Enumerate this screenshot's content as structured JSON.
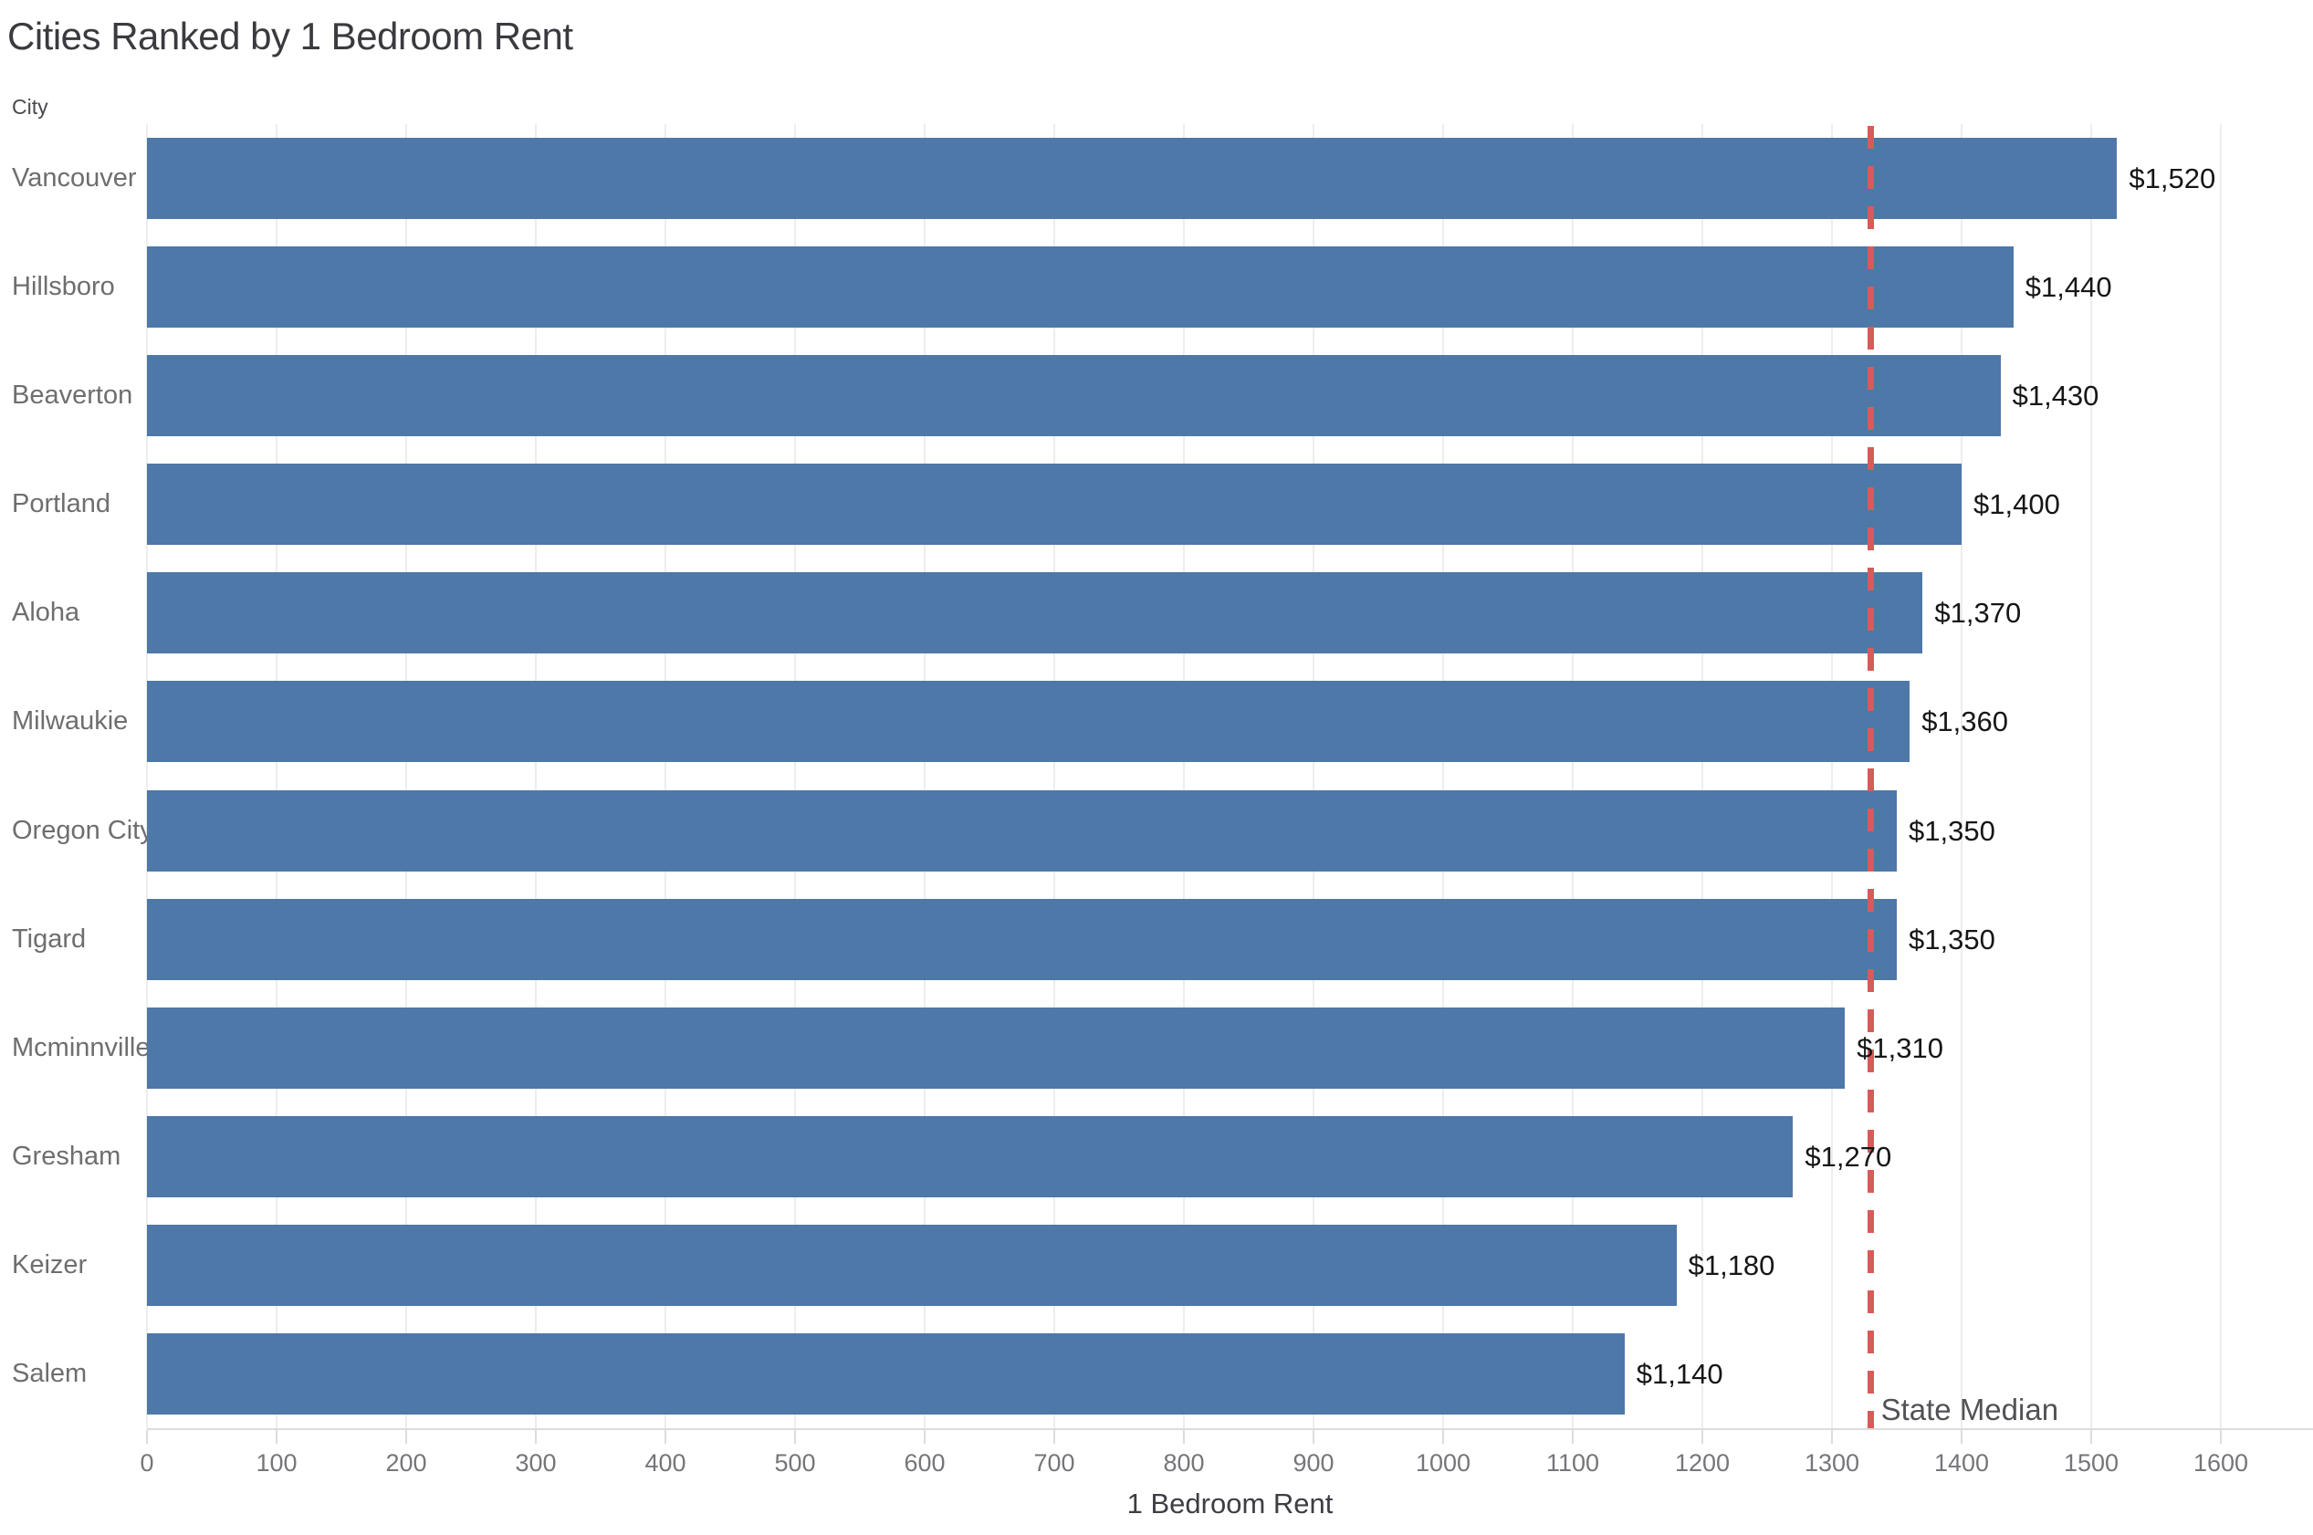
{
  "title": "Cities Ranked by 1 Bedroom Rent",
  "row_header": "City",
  "colors": {
    "bar": "#4d78a8",
    "reference_line": "#d95a5a",
    "title_text": "#3a3a3f",
    "value_label_text": "#161616",
    "category_text": "#6e6e6e",
    "tick_text": "#76767a",
    "gridline": "#ededed",
    "axis_line": "#dcdcdc"
  },
  "chart_data": {
    "type": "bar",
    "orientation": "horizontal",
    "title": "Cities Ranked by 1 Bedroom Rent",
    "xlabel": "1 Bedroom Rent",
    "ylabel": "City",
    "grid": true,
    "xlim": [
      0,
      1670
    ],
    "x_ticks": [
      0,
      100,
      200,
      300,
      400,
      500,
      600,
      700,
      800,
      900,
      1000,
      1100,
      1200,
      1300,
      1400,
      1500,
      1600
    ],
    "bar_color": "#4d78a8",
    "categories": [
      "Vancouver",
      "Hillsboro",
      "Beaverton",
      "Portland",
      "Aloha",
      "Milwaukie",
      "Oregon City",
      "Tigard",
      "Mcminnville",
      "Gresham",
      "Keizer",
      "Salem"
    ],
    "values": [
      1520,
      1440,
      1430,
      1400,
      1370,
      1360,
      1350,
      1350,
      1310,
      1270,
      1180,
      1140
    ],
    "value_labels": [
      "$1,520",
      "$1,440",
      "$1,430",
      "$1,400",
      "$1,370",
      "$1,360",
      "$1,350",
      "$1,350",
      "$1,310",
      "$1,270",
      "$1,180",
      "$1,140"
    ],
    "reference_line": {
      "value": 1330,
      "label": "State Median",
      "style": "dashed",
      "color": "#d95a5a"
    }
  }
}
